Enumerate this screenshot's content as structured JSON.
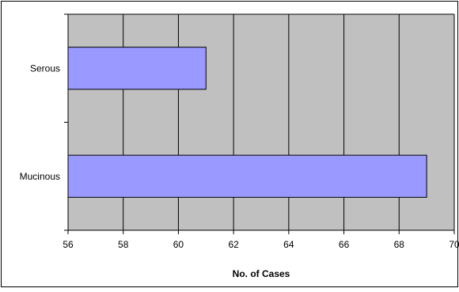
{
  "chart_data": {
    "type": "bar",
    "orientation": "horizontal",
    "categories": [
      "Serous",
      "Mucinous"
    ],
    "values": [
      61,
      69
    ],
    "xlabel": "No. of Cases",
    "ylabel": "",
    "xlim": [
      56,
      70
    ],
    "x_ticks": [
      56,
      58,
      60,
      62,
      64,
      66,
      68,
      70
    ],
    "grid": true,
    "legend": "none",
    "colors": {
      "bar_fill": "#9999ff",
      "bar_stroke": "#000000",
      "plot_background": "#c0c0c0",
      "gridline": "#000000",
      "chart_border": "#000000"
    }
  }
}
